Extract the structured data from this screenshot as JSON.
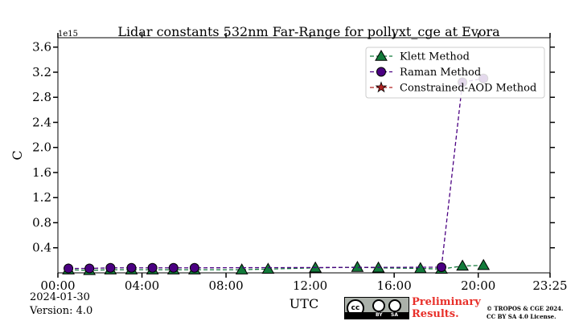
{
  "chart_data": {
    "type": "scatter",
    "title": "Lidar constants 532nm Far-Range for pollyxt_cge at Evora",
    "xlabel": "UTC",
    "ylabel": "C",
    "y_multiplier": "1e15",
    "x_ticks": [
      "00:00",
      "04:00",
      "08:00",
      "12:00",
      "16:00",
      "20:00",
      "23:25"
    ],
    "y_ticks": [
      "0.4",
      "0.8",
      "1.2",
      "1.6",
      "2.0",
      "2.4",
      "2.8",
      "3.2",
      "3.6"
    ],
    "xlim": [
      "00:00",
      "23:25"
    ],
    "ylim": [
      0.0,
      3.75
    ],
    "grid": false,
    "legend_position": "upper right",
    "series": [
      {
        "name": "Klett Method",
        "color": "#127a3a",
        "line": "dashed",
        "marker": "triangle",
        "x": [
          "00:30",
          "01:30",
          "02:30",
          "03:30",
          "04:30",
          "05:30",
          "06:30",
          "08:45",
          "10:00",
          "12:15",
          "14:15",
          "15:15",
          "17:15",
          "18:15",
          "19:15",
          "20:15"
        ],
        "y": [
          0.05,
          0.04,
          0.05,
          0.05,
          0.05,
          0.05,
          0.05,
          0.05,
          0.06,
          0.08,
          0.09,
          0.08,
          0.07,
          0.06,
          0.11,
          0.12
        ]
      },
      {
        "name": "Raman Method",
        "color": "#4b0082",
        "line": "dashed",
        "marker": "circle",
        "x": [
          "00:30",
          "01:30",
          "02:30",
          "03:30",
          "04:30",
          "05:30",
          "06:30",
          "18:15",
          "19:15",
          "20:15"
        ],
        "y": [
          0.07,
          0.07,
          0.08,
          0.08,
          0.08,
          0.08,
          0.08,
          0.09,
          3.04,
          3.1
        ]
      },
      {
        "name": "Constrained-AOD Method",
        "color": "#b22222",
        "line": "dashed",
        "marker": "star",
        "x": [],
        "y": []
      }
    ]
  },
  "footer": {
    "date": "2024-01-30",
    "version": "Version: 4.0",
    "preliminary_line1": "Preliminary",
    "preliminary_line2": "Results.",
    "copyright_line1": "© TROPOS & CGE 2024.",
    "copyright_line2": "CC BY SA 4.0 License.",
    "license_badge": {
      "icon": "cc-by-sa-icon",
      "cc_text": "cc",
      "by_text": "BY",
      "sa_text": "SA"
    }
  }
}
